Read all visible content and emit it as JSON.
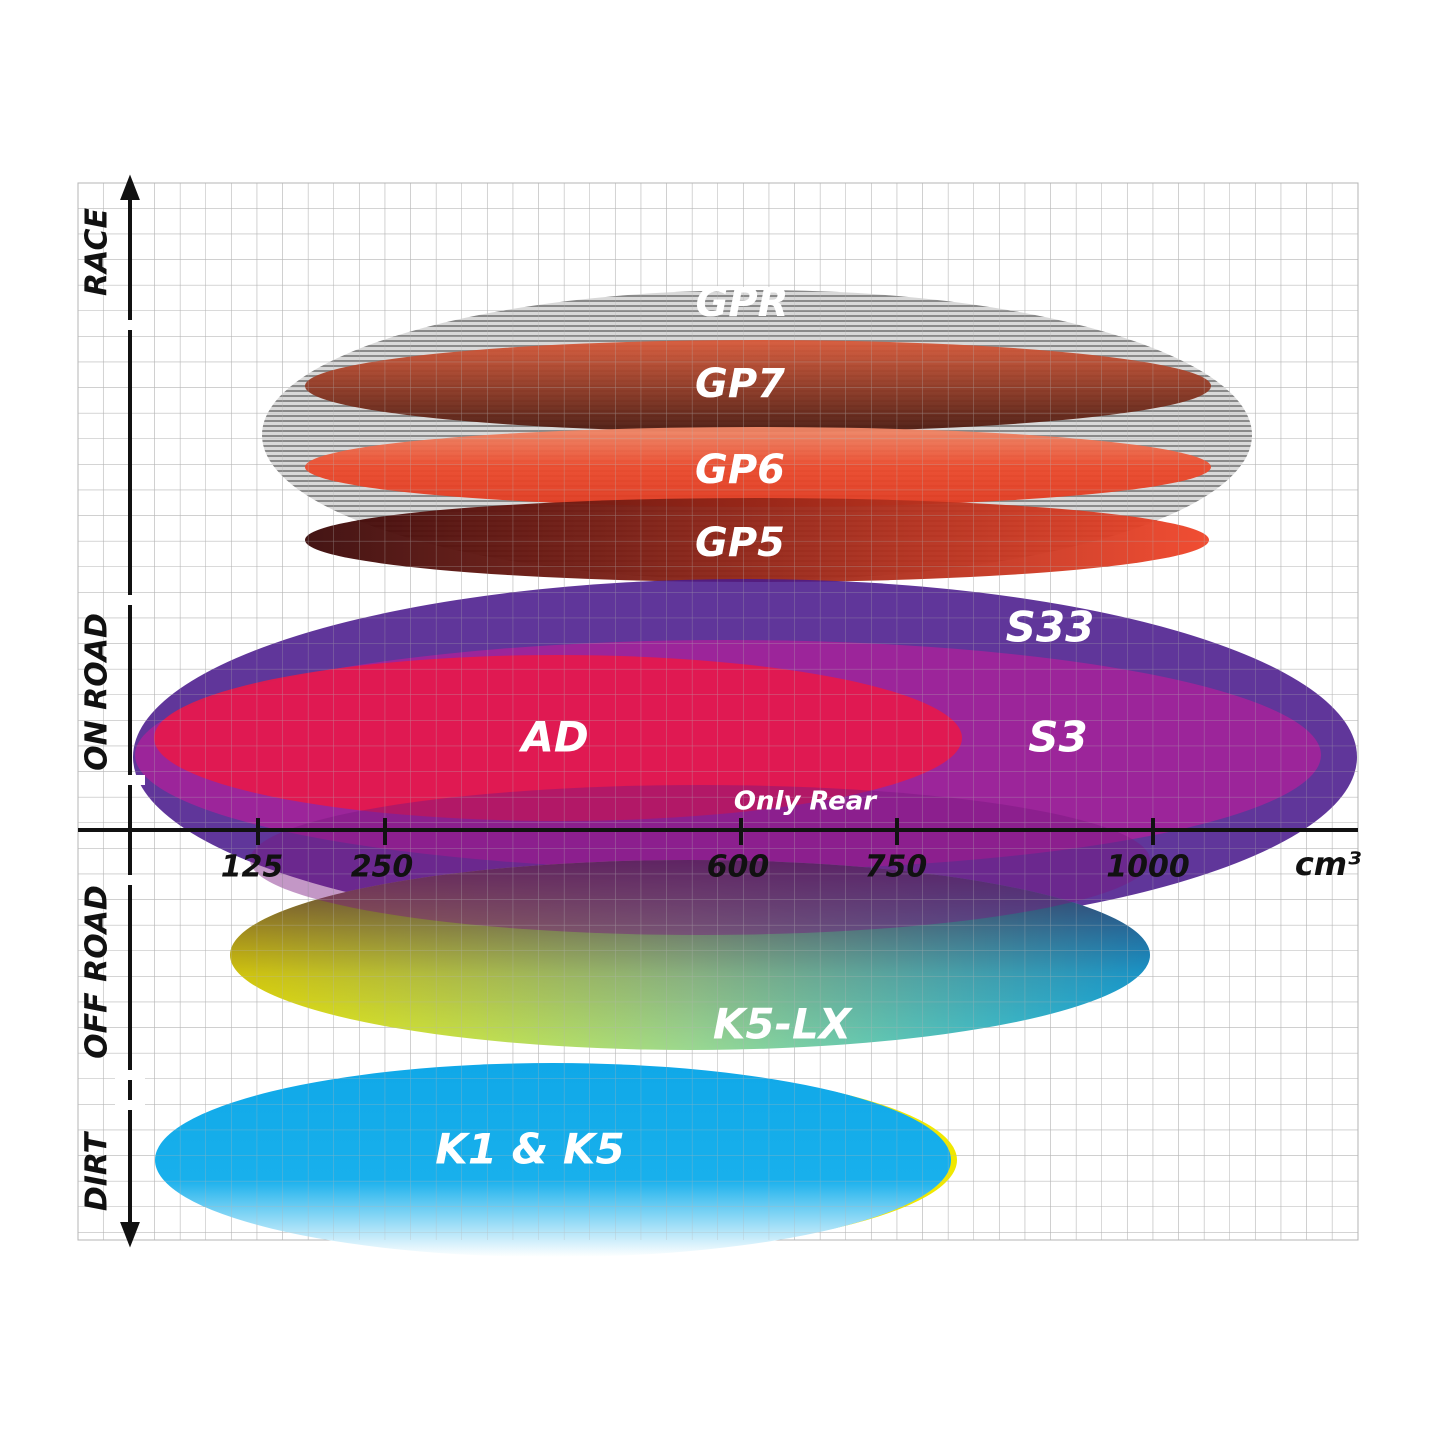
{
  "axis": {
    "y_labels": [
      "RACE",
      "ON ROAD",
      "OFF ROAD",
      "DIRT"
    ],
    "x_ticks": [
      "125",
      "250",
      "600",
      "750",
      "1000"
    ],
    "x_unit": "cm³"
  },
  "tires": [
    "GPR",
    "GP7",
    "GP6",
    "GP5",
    "S33",
    "AD",
    "S3",
    "Only Rear",
    "K5-LX",
    "K1 & K5"
  ]
}
